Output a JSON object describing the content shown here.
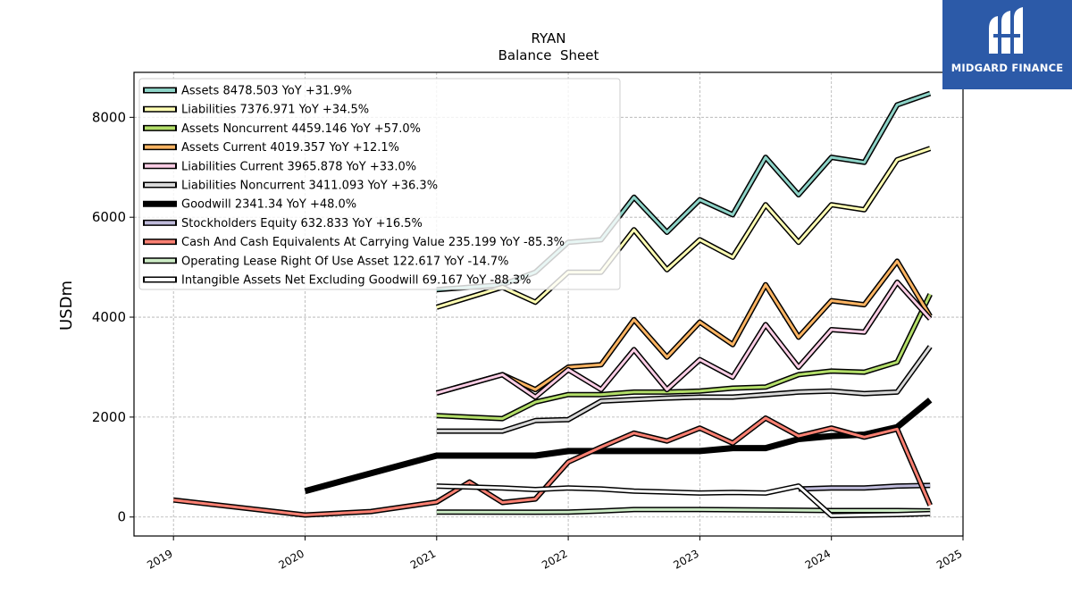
{
  "logo": {
    "text": "MIDGARD FINANCE",
    "icon": "midgard-m-icon",
    "color": "#2c5aa8"
  },
  "chart_data": {
    "type": "line",
    "title": "RYAN",
    "subtitle": "Balance  Sheet",
    "ylabel": "USDm",
    "xlabel": "",
    "xlim": [
      2018.7,
      2025.0
    ],
    "ylim": [
      -380,
      8900
    ],
    "xticks": [
      "2019",
      "2020",
      "2021",
      "2022",
      "2023",
      "2024",
      "2025"
    ],
    "yticks": [
      0,
      2000,
      4000,
      6000,
      8000
    ],
    "grid": true,
    "legend_position": "top-left",
    "series": [
      {
        "name": "Assets  8478.503 YoY +31.9%",
        "color": "#8dd3c7",
        "width": 3,
        "points": [
          [
            2021.0,
            4550
          ],
          [
            2021.5,
            4650
          ],
          [
            2021.75,
            4900
          ],
          [
            2022.0,
            5500
          ],
          [
            2022.25,
            5550
          ],
          [
            2022.5,
            6400
          ],
          [
            2022.75,
            5700
          ],
          [
            2023.0,
            6350
          ],
          [
            2023.25,
            6050
          ],
          [
            2023.5,
            7200
          ],
          [
            2023.75,
            6450
          ],
          [
            2024.0,
            7200
          ],
          [
            2024.25,
            7100
          ],
          [
            2024.5,
            8250
          ],
          [
            2024.75,
            8478.503
          ]
        ]
      },
      {
        "name": "Liabilities  7376.971 YoY +34.5%",
        "color": "#ffffb3",
        "width": 3,
        "points": [
          [
            2021.0,
            4200
          ],
          [
            2021.5,
            4600
          ],
          [
            2021.75,
            4300
          ],
          [
            2022.0,
            4900
          ],
          [
            2022.25,
            4900
          ],
          [
            2022.5,
            5750
          ],
          [
            2022.75,
            4950
          ],
          [
            2023.0,
            5550
          ],
          [
            2023.25,
            5200
          ],
          [
            2023.5,
            6250
          ],
          [
            2023.75,
            5500
          ],
          [
            2024.0,
            6250
          ],
          [
            2024.25,
            6150
          ],
          [
            2024.5,
            7150
          ],
          [
            2024.75,
            7376.971
          ]
        ]
      },
      {
        "name": "Assets Noncurrent  4459.146 YoY +57.0%",
        "color": "#b3de69",
        "width": 3,
        "points": [
          [
            2021.0,
            2030
          ],
          [
            2021.5,
            1970
          ],
          [
            2021.75,
            2300
          ],
          [
            2022.0,
            2450
          ],
          [
            2022.25,
            2450
          ],
          [
            2022.5,
            2500
          ],
          [
            2022.75,
            2500
          ],
          [
            2023.0,
            2520
          ],
          [
            2023.25,
            2580
          ],
          [
            2023.5,
            2600
          ],
          [
            2023.75,
            2850
          ],
          [
            2024.0,
            2920
          ],
          [
            2024.25,
            2900
          ],
          [
            2024.5,
            3100
          ],
          [
            2024.75,
            4459.146
          ]
        ]
      },
      {
        "name": "Assets Current  4019.357 YoY +12.1%",
        "color": "#fdb462",
        "width": 3,
        "points": [
          [
            2021.0,
            2480
          ],
          [
            2021.5,
            2850
          ],
          [
            2021.75,
            2550
          ],
          [
            2022.0,
            3000
          ],
          [
            2022.25,
            3050
          ],
          [
            2022.5,
            3950
          ],
          [
            2022.75,
            3200
          ],
          [
            2023.0,
            3900
          ],
          [
            2023.25,
            3450
          ],
          [
            2023.5,
            4650
          ],
          [
            2023.75,
            3600
          ],
          [
            2024.0,
            4330
          ],
          [
            2024.25,
            4250
          ],
          [
            2024.5,
            5120
          ],
          [
            2024.75,
            4019.357
          ]
        ]
      },
      {
        "name": "Liabilities Current  3965.878 YoY +33.0%",
        "color": "#fccde5",
        "width": 3,
        "points": [
          [
            2021.0,
            2480
          ],
          [
            2021.5,
            2850
          ],
          [
            2021.75,
            2400
          ],
          [
            2022.0,
            2950
          ],
          [
            2022.25,
            2550
          ],
          [
            2022.5,
            3350
          ],
          [
            2022.75,
            2550
          ],
          [
            2023.0,
            3150
          ],
          [
            2023.25,
            2800
          ],
          [
            2023.5,
            3850
          ],
          [
            2023.75,
            3000
          ],
          [
            2024.0,
            3750
          ],
          [
            2024.25,
            3700
          ],
          [
            2024.5,
            4700
          ],
          [
            2024.75,
            3965.878
          ]
        ]
      },
      {
        "name": "Liabilities Noncurrent  3411.093 YoY +36.3%",
        "color": "#d9d9d9",
        "width": 3,
        "points": [
          [
            2021.0,
            1720
          ],
          [
            2021.5,
            1720
          ],
          [
            2021.75,
            1930
          ],
          [
            2022.0,
            1950
          ],
          [
            2022.25,
            2320
          ],
          [
            2022.5,
            2350
          ],
          [
            2022.75,
            2380
          ],
          [
            2023.0,
            2400
          ],
          [
            2023.25,
            2400
          ],
          [
            2023.5,
            2450
          ],
          [
            2023.75,
            2500
          ],
          [
            2024.0,
            2520
          ],
          [
            2024.25,
            2470
          ],
          [
            2024.5,
            2500
          ],
          [
            2024.75,
            3411.093
          ]
        ]
      },
      {
        "name": "Goodwill  2341.34 YoY +48.0%",
        "color": "#000000",
        "width": 7,
        "points": [
          [
            2020.0,
            520
          ],
          [
            2021.0,
            1230
          ],
          [
            2021.75,
            1230
          ],
          [
            2022.0,
            1320
          ],
          [
            2022.5,
            1320
          ],
          [
            2023.0,
            1320
          ],
          [
            2023.25,
            1380
          ],
          [
            2023.5,
            1380
          ],
          [
            2023.75,
            1560
          ],
          [
            2024.0,
            1620
          ],
          [
            2024.25,
            1650
          ],
          [
            2024.5,
            1800
          ],
          [
            2024.75,
            2341.34
          ]
        ]
      },
      {
        "name": "Stockholders Equity  632.833 YoY +16.5%",
        "color": "#bebada",
        "width": 3,
        "points": [
          [
            2023.75,
            560
          ],
          [
            2024.0,
            580
          ],
          [
            2024.25,
            580
          ],
          [
            2024.5,
            620
          ],
          [
            2024.75,
            632.833
          ]
        ]
      },
      {
        "name": "Cash And Cash Equivalents At Carrying Value  235.199 YoY -85.3%",
        "color": "#fb8072",
        "width": 3,
        "points": [
          [
            2019.0,
            340
          ],
          [
            2020.0,
            40
          ],
          [
            2020.5,
            110
          ],
          [
            2021.0,
            300
          ],
          [
            2021.25,
            700
          ],
          [
            2021.5,
            290
          ],
          [
            2021.75,
            360
          ],
          [
            2022.0,
            1100
          ],
          [
            2022.25,
            1400
          ],
          [
            2022.5,
            1680
          ],
          [
            2022.75,
            1520
          ],
          [
            2023.0,
            1780
          ],
          [
            2023.25,
            1480
          ],
          [
            2023.5,
            1980
          ],
          [
            2023.75,
            1620
          ],
          [
            2024.0,
            1780
          ],
          [
            2024.25,
            1600
          ],
          [
            2024.5,
            1760
          ],
          [
            2024.75,
            235.199
          ]
        ]
      },
      {
        "name": "Operating Lease Right Of Use Asset  122.617 YoY -14.7%",
        "color": "#ccebc5",
        "width": 3,
        "points": [
          [
            2021.0,
            100
          ],
          [
            2021.75,
            95
          ],
          [
            2022.0,
            100
          ],
          [
            2022.25,
            120
          ],
          [
            2022.5,
            150
          ],
          [
            2023.0,
            150
          ],
          [
            2023.5,
            140
          ],
          [
            2024.0,
            130
          ],
          [
            2024.5,
            130
          ],
          [
            2024.75,
            122.617
          ]
        ]
      },
      {
        "name": "Intangible Assets Net Excluding Goodwill  69.167 YoY -88.3%",
        "color": "#ffffff",
        "width": 3,
        "points": [
          [
            2021.0,
            620
          ],
          [
            2021.5,
            580
          ],
          [
            2021.75,
            550
          ],
          [
            2022.0,
            580
          ],
          [
            2022.25,
            560
          ],
          [
            2022.5,
            520
          ],
          [
            2022.75,
            500
          ],
          [
            2023.0,
            480
          ],
          [
            2023.25,
            490
          ],
          [
            2023.5,
            480
          ],
          [
            2023.75,
            620
          ],
          [
            2024.0,
            30
          ],
          [
            2024.25,
            40
          ],
          [
            2024.5,
            50
          ],
          [
            2024.75,
            69.167
          ]
        ]
      }
    ]
  }
}
